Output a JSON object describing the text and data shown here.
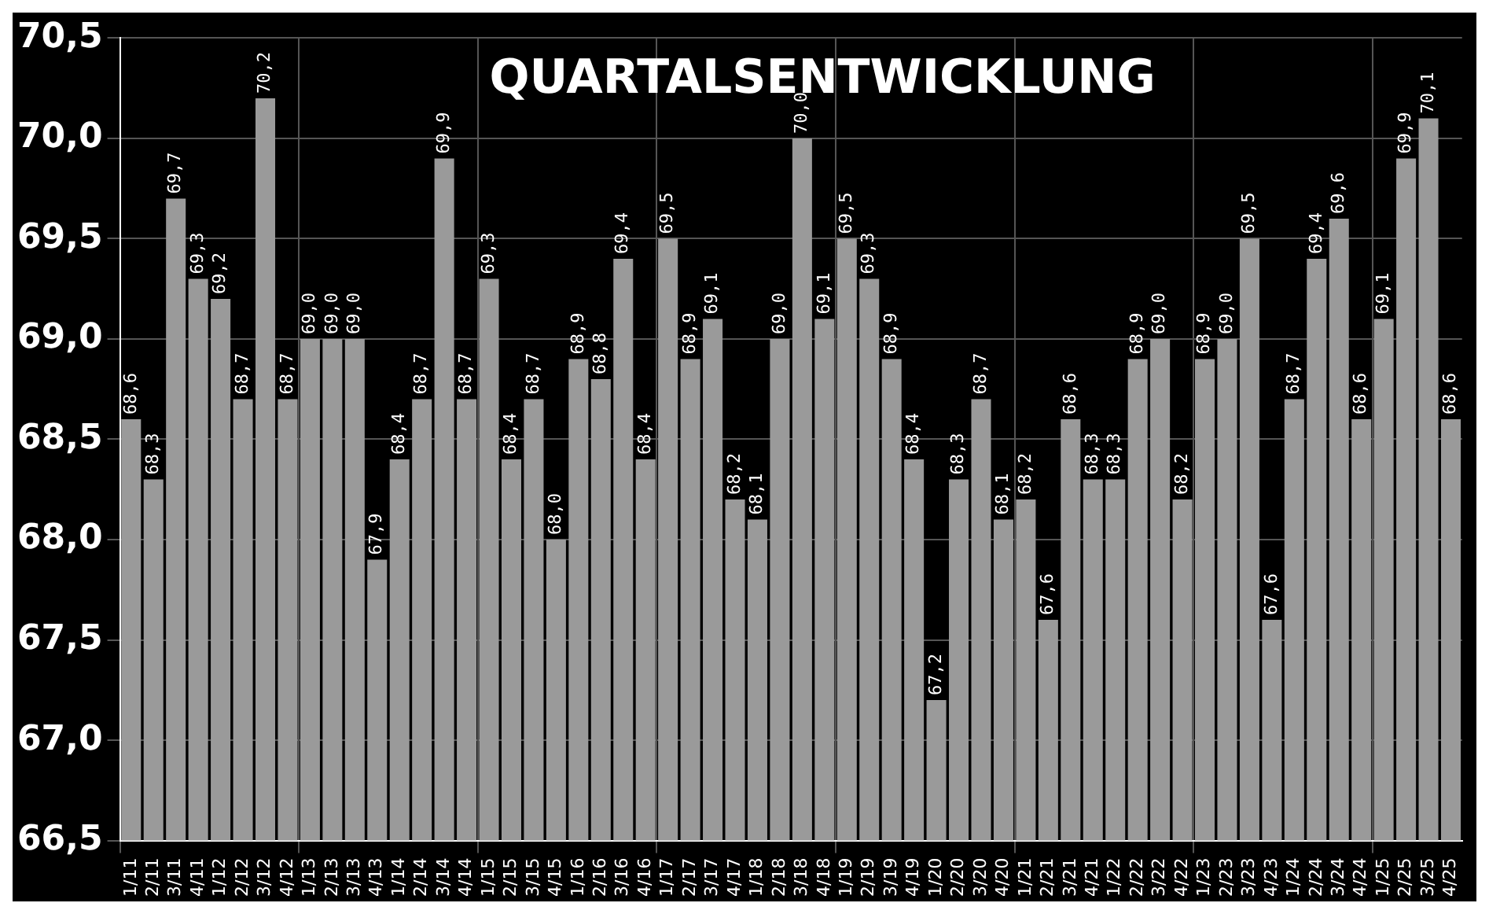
{
  "chart_data": {
    "type": "bar",
    "title": "QUARTALSENTWICKLUNG",
    "categories": [
      "1/11",
      "2/11",
      "3/11",
      "4/11",
      "1/12",
      "2/12",
      "3/12",
      "4/12",
      "1/13",
      "2/13",
      "3/13",
      "4/13",
      "1/14",
      "2/14",
      "3/14",
      "4/14",
      "1/15",
      "2/15",
      "3/15",
      "4/15",
      "1/16",
      "2/16",
      "3/16",
      "4/16",
      "1/17",
      "2/17",
      "3/17",
      "4/17",
      "1/18",
      "2/18",
      "3/18",
      "4/18",
      "1/19",
      "2/19",
      "3/19",
      "4/19",
      "1/20",
      "2/20",
      "3/20",
      "4/20",
      "1/21",
      "2/21",
      "3/21",
      "4/21",
      "1/22",
      "2/22",
      "3/22",
      "4/22",
      "1/23",
      "2/23",
      "3/23",
      "4/23",
      "1/24",
      "2/24",
      "3/24",
      "4/24",
      "1/25",
      "2/25",
      "3/25",
      "4/25"
    ],
    "values": [
      68.6,
      68.3,
      69.7,
      69.3,
      69.2,
      68.7,
      70.2,
      68.7,
      69.0,
      69.0,
      69.0,
      67.9,
      68.4,
      68.7,
      69.9,
      68.7,
      69.3,
      68.4,
      68.7,
      68.0,
      68.9,
      68.8,
      69.4,
      68.4,
      69.5,
      68.9,
      69.1,
      68.2,
      68.1,
      69.0,
      70.0,
      69.1,
      69.5,
      69.3,
      68.9,
      68.4,
      67.2,
      68.3,
      68.7,
      68.1,
      68.2,
      67.6,
      68.6,
      68.3,
      68.3,
      68.9,
      69.0,
      68.2,
      68.9,
      69.0,
      69.5,
      67.6,
      68.7,
      69.4,
      69.6,
      68.6,
      69.1,
      69.9,
      70.1,
      68.6
    ],
    "value_labels": [
      "68,6",
      "68,3",
      "69,7",
      "69,3",
      "69,2",
      "68,7",
      "70,2",
      "68,7",
      "69,0",
      "69,0",
      "69,0",
      "67,9",
      "68,4",
      "68,7",
      "69,9",
      "68,7",
      "69,3",
      "68,4",
      "68,7",
      "68,0",
      "68,9",
      "68,8",
      "69,4",
      "68,4",
      "69,5",
      "68,9",
      "69,1",
      "68,2",
      "68,1",
      "69,0",
      "70,0",
      "69,1",
      "69,5",
      "69,3",
      "68,9",
      "68,4",
      "67,2",
      "68,3",
      "68,7",
      "68,1",
      "68,2",
      "67,6",
      "68,6",
      "68,3",
      "68,3",
      "68,9",
      "69,0",
      "68,2",
      "68,9",
      "69,0",
      "69,5",
      "67,6",
      "68,7",
      "69,4",
      "69,6",
      "68,6",
      "69,1",
      "69,9",
      "70,1",
      "68,6"
    ],
    "color": "#9a9a9a",
    "ylim": [
      66.5,
      70.5
    ],
    "yticks": [
      {
        "value": 66.5,
        "label": "66,5"
      },
      {
        "value": 67,
        "label": "67,0"
      },
      {
        "value": 67.5,
        "label": "67,5"
      },
      {
        "value": 68,
        "label": "68,0"
      },
      {
        "value": 68.5,
        "label": "68,5"
      },
      {
        "value": 69,
        "label": "69,0"
      },
      {
        "value": 69.5,
        "label": "69,5"
      },
      {
        "value": 70,
        "label": "70,0"
      },
      {
        "value": 70.5,
        "label": "70,5"
      }
    ],
    "grid": true
  }
}
